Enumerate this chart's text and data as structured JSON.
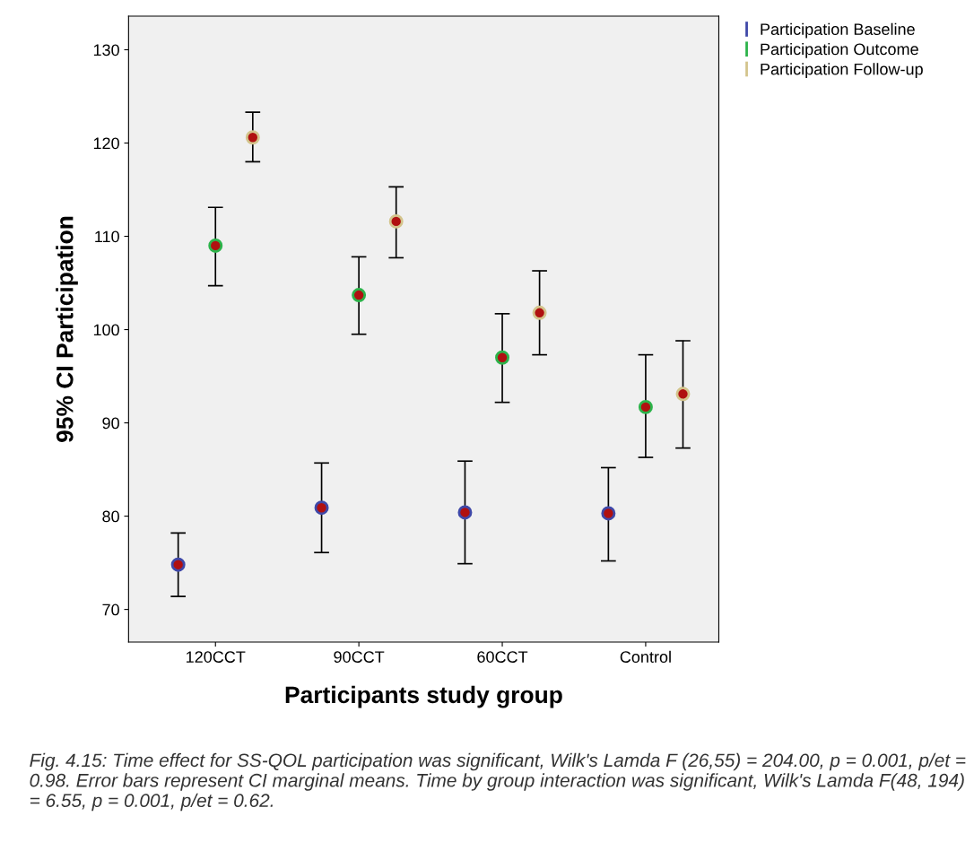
{
  "chart_data": {
    "type": "scatter",
    "xlabel": "Participants study group",
    "ylabel": "95% CI Participation",
    "categories": [
      "120CCT",
      "90CCT",
      "60CCT",
      "Control"
    ],
    "series": [
      {
        "name": "Participation Baseline",
        "color": "#3f48a8",
        "values": [
          74.8,
          80.9,
          80.4,
          80.3
        ],
        "errors": [
          [
            71.4,
            78.2
          ],
          [
            76.1,
            85.7
          ],
          [
            74.9,
            85.9
          ],
          [
            75.2,
            85.2
          ]
        ]
      },
      {
        "name": "Participation Outcome",
        "color": "#2cb34a",
        "values": [
          109.0,
          103.7,
          97.0,
          91.7
        ],
        "errors": [
          [
            104.7,
            113.1
          ],
          [
            99.5,
            107.8
          ],
          [
            92.2,
            101.7
          ],
          [
            86.3,
            97.3
          ]
        ]
      },
      {
        "name": "Participation Follow-up",
        "color": "#d3c48c",
        "values": [
          120.6,
          111.6,
          101.8,
          93.1
        ],
        "errors": [
          [
            118.0,
            123.3
          ],
          [
            107.7,
            115.3
          ],
          [
            97.3,
            106.3
          ],
          [
            87.3,
            98.8
          ]
        ]
      }
    ],
    "ylim": [
      66.5,
      133.6
    ],
    "yticks": [
      70,
      80,
      90,
      100,
      110,
      120,
      130
    ],
    "grid": false,
    "legend": "top right",
    "marker": "circle",
    "annotations": [
      "Fig. 4.15: Time effect for SS-QOL participation was significant, Wilk's Lamda F (26,55) = 204.00, p = 0.001, p/et = 0.98. Error bars represent CI marginal means. Time by group interaction was significant, Wilk's Lamda F(48, 194) = 6.55, p = 0.001, p/et = 0.62."
    ]
  }
}
